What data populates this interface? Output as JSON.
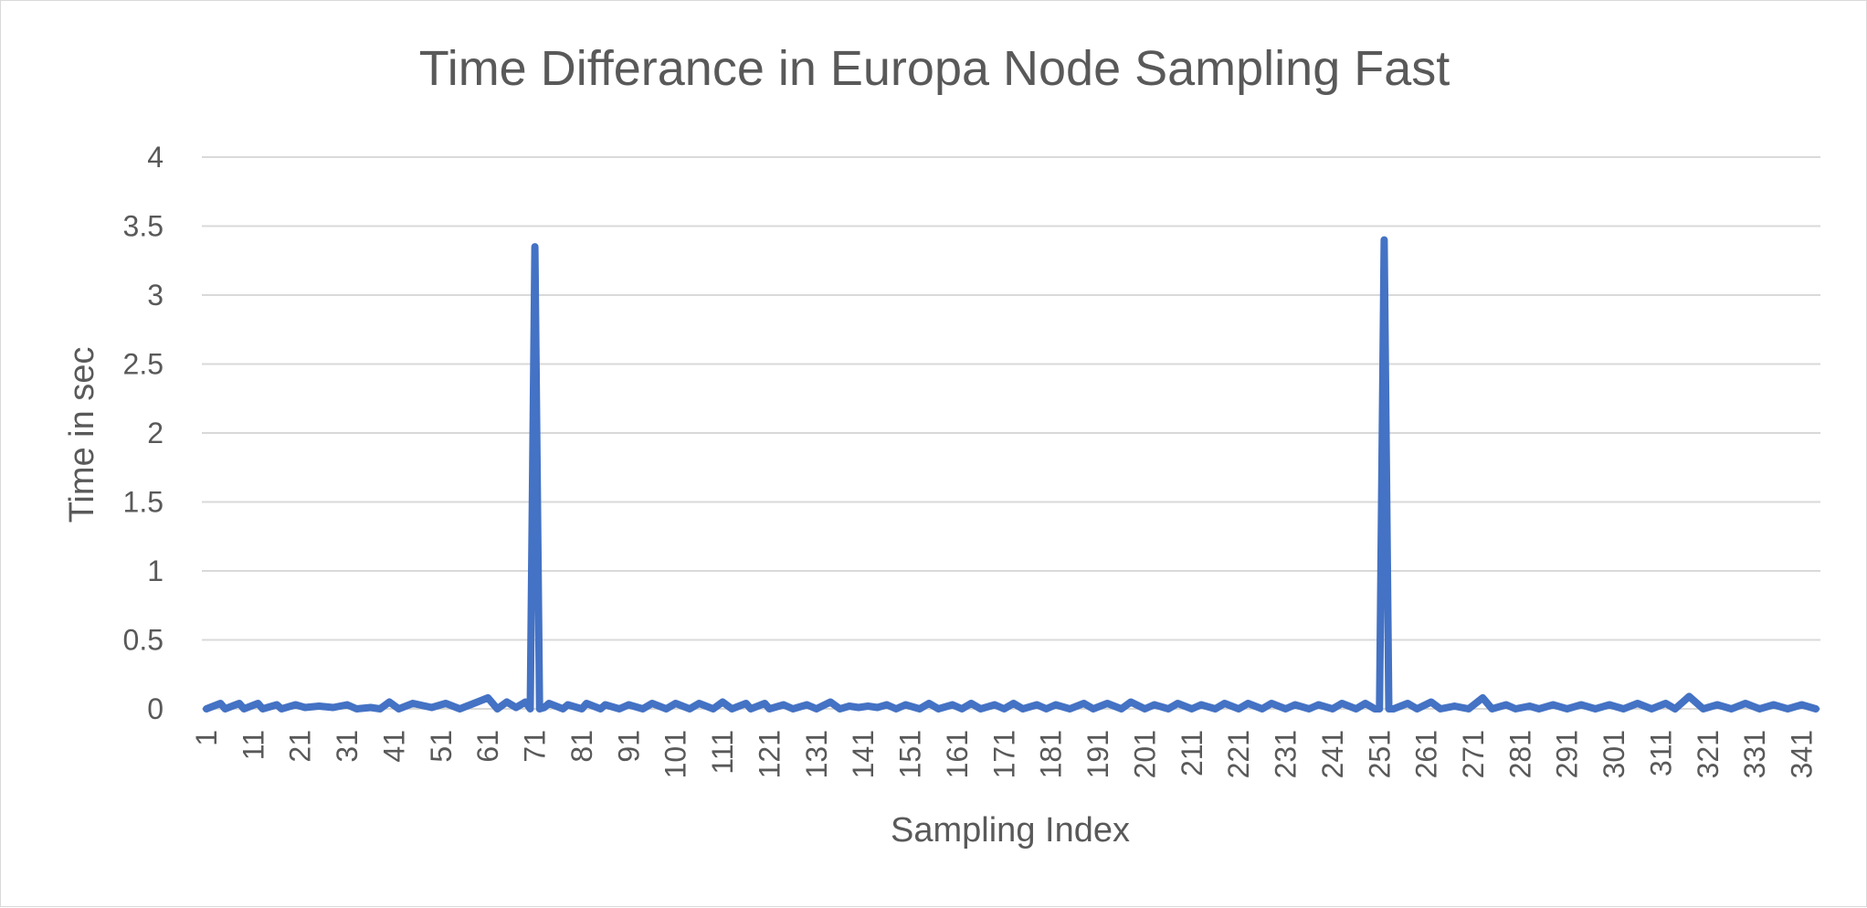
{
  "chart_data": {
    "type": "line",
    "title": "Time Differance in Europa Node Sampling Fast",
    "xlabel": "Sampling Index",
    "ylabel": "Time in sec",
    "ylim": [
      0,
      4
    ],
    "yticks": [
      "0",
      "0.5",
      "1",
      "1.5",
      "2",
      "2.5",
      "3",
      "3.5",
      "4"
    ],
    "xticks": [
      "1",
      "11",
      "21",
      "31",
      "41",
      "51",
      "61",
      "71",
      "81",
      "91",
      "101",
      "111",
      "121",
      "131",
      "141",
      "151",
      "161",
      "171",
      "181",
      "191",
      "201",
      "211",
      "221",
      "231",
      "241",
      "251",
      "261",
      "271",
      "281",
      "291",
      "301",
      "311",
      "321",
      "331",
      "341"
    ],
    "x_range": [
      1,
      344
    ],
    "grid": true,
    "legend": "none",
    "color": "#4472c4",
    "series": [
      {
        "x": [
          1,
          4,
          5,
          8,
          9,
          12,
          13,
          16,
          17,
          20,
          22,
          25,
          28,
          31,
          33,
          36,
          38,
          40,
          42,
          45,
          49,
          52,
          55,
          58,
          61,
          63,
          65,
          67,
          69,
          70,
          71,
          72,
          73,
          74,
          77,
          78,
          81,
          82,
          85,
          86,
          89,
          91,
          94,
          96,
          99,
          101,
          104,
          106,
          109,
          111,
          113,
          116,
          117,
          120,
          121,
          124,
          126,
          129,
          131,
          134,
          136,
          138,
          140,
          142,
          144,
          146,
          148,
          150,
          153,
          155,
          157,
          160,
          162,
          164,
          166,
          169,
          171,
          173,
          175,
          178,
          180,
          182,
          185,
          188,
          190,
          193,
          196,
          198,
          201,
          203,
          206,
          208,
          211,
          213,
          216,
          218,
          221,
          223,
          226,
          228,
          231,
          233,
          236,
          238,
          241,
          243,
          246,
          248,
          250,
          251,
          252,
          253,
          254,
          257,
          259,
          262,
          264,
          267,
          270,
          273,
          275,
          278,
          280,
          283,
          285,
          288,
          291,
          294,
          297,
          300,
          303,
          306,
          309,
          312,
          314,
          317,
          320,
          323,
          326,
          329,
          332,
          335,
          338,
          341,
          344
        ],
        "values": [
          0.0,
          0.04,
          0.0,
          0.04,
          0.0,
          0.04,
          0.0,
          0.03,
          0.0,
          0.03,
          0.01,
          0.02,
          0.01,
          0.03,
          0.0,
          0.01,
          0.0,
          0.05,
          0.0,
          0.04,
          0.01,
          0.04,
          0.0,
          0.04,
          0.08,
          0.0,
          0.05,
          0.01,
          0.05,
          0.0,
          3.35,
          0.0,
          0.01,
          0.04,
          0.0,
          0.03,
          0.0,
          0.04,
          0.0,
          0.03,
          0.0,
          0.03,
          0.0,
          0.04,
          0.0,
          0.04,
          0.0,
          0.04,
          0.0,
          0.05,
          0.0,
          0.04,
          0.0,
          0.04,
          0.0,
          0.03,
          0.0,
          0.03,
          0.0,
          0.05,
          0.0,
          0.02,
          0.01,
          0.02,
          0.01,
          0.03,
          0.0,
          0.03,
          0.0,
          0.04,
          0.0,
          0.03,
          0.0,
          0.04,
          0.0,
          0.03,
          0.0,
          0.04,
          0.0,
          0.03,
          0.0,
          0.03,
          0.0,
          0.04,
          0.0,
          0.04,
          0.0,
          0.05,
          0.0,
          0.03,
          0.0,
          0.04,
          0.0,
          0.03,
          0.0,
          0.04,
          0.0,
          0.04,
          0.0,
          0.04,
          0.0,
          0.03,
          0.0,
          0.03,
          0.0,
          0.04,
          0.0,
          0.04,
          0.0,
          0.0,
          3.4,
          0.0,
          0.0,
          0.04,
          0.0,
          0.05,
          0.0,
          0.02,
          0.0,
          0.08,
          0.0,
          0.03,
          0.0,
          0.02,
          0.0,
          0.03,
          0.0,
          0.03,
          0.0,
          0.03,
          0.0,
          0.04,
          0.0,
          0.04,
          0.0,
          0.09,
          0.0,
          0.03,
          0.0,
          0.04,
          0.0,
          0.03,
          0.0,
          0.03,
          0.0
        ]
      }
    ]
  }
}
